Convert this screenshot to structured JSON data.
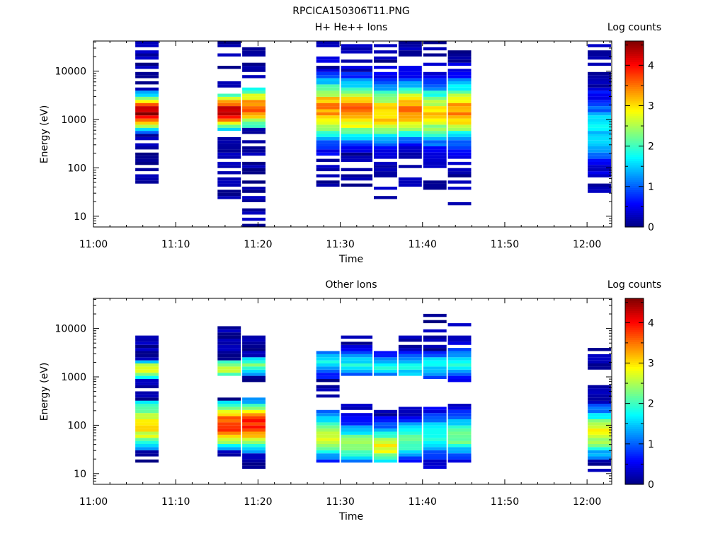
{
  "page_title": "RPCICA150306T11.PNG",
  "chart_data": [
    {
      "type": "heatmap",
      "title": "H+ He++ Ions",
      "xlabel": "Time",
      "ylabel": "Energy (eV)",
      "x_tick_labels": [
        "11:00",
        "11:10",
        "11:20",
        "11:30",
        "11:40",
        "11:50",
        "12:00"
      ],
      "x_range_minutes": [
        0,
        63
      ],
      "y_scale": "log",
      "y_tick_labels": [
        "10",
        "100",
        "1000",
        "10000"
      ],
      "y_range": [
        6,
        42000
      ],
      "colorbar": {
        "label": "Log counts",
        "range": [
          0,
          4.6
        ],
        "tick_labels": [
          "0",
          "1",
          "2",
          "3",
          "4"
        ]
      },
      "sweeps": [
        {
          "t_start": "11:05",
          "t_end": "11:08",
          "emin": 46,
          "emax": 40000,
          "peak_energy": 1400,
          "peak_value": 4.5,
          "width": 0.25,
          "low_level": 1.0,
          "fill": 0.65
        },
        {
          "t_start": "11:15",
          "t_end": "11:18",
          "emin": 22,
          "emax": 40000,
          "peak_energy": 1500,
          "peak_value": 4.2,
          "width": 0.27,
          "low_level": 1.4,
          "fill": 0.6
        },
        {
          "t_start": "11:18",
          "t_end": "11:21",
          "emin": 6,
          "emax": 40000,
          "peak_energy": 1700,
          "peak_value": 3.6,
          "width": 0.32,
          "low_level": 1.6,
          "fill": 0.55
        },
        {
          "t_start": "11:27",
          "t_end": "11:30",
          "emin": 38,
          "emax": 40000,
          "peak_energy": 1600,
          "peak_value": 3.4,
          "width": 0.45,
          "low_level": 0.4,
          "fill": 0.5
        },
        {
          "t_start": "11:30",
          "t_end": "11:34",
          "emin": 33,
          "emax": 38000,
          "peak_energy": 1500,
          "peak_value": 3.5,
          "width": 0.42,
          "low_level": 0.4,
          "fill": 0.45
        },
        {
          "t_start": "11:34",
          "t_end": "11:37",
          "emin": 17,
          "emax": 40000,
          "peak_energy": 1300,
          "peak_value": 3.2,
          "width": 0.42,
          "low_level": 0.3,
          "fill": 0.45
        },
        {
          "t_start": "11:37",
          "t_end": "11:40",
          "emin": 40,
          "emax": 40000,
          "peak_energy": 1500,
          "peak_value": 3.5,
          "width": 0.4,
          "low_level": 0.3,
          "fill": 0.5
        },
        {
          "t_start": "11:40",
          "t_end": "11:43",
          "emin": 33,
          "emax": 40000,
          "peak_energy": 1300,
          "peak_value": 3.0,
          "width": 0.42,
          "low_level": 0.3,
          "fill": 0.45
        },
        {
          "t_start": "11:43",
          "t_end": "11:46",
          "emin": 17,
          "emax": 40000,
          "peak_energy": 1500,
          "peak_value": 3.4,
          "width": 0.42,
          "low_level": 0.3,
          "fill": 0.45
        },
        {
          "t_start": "12:00",
          "t_end": "12:03",
          "emin": 31,
          "emax": 38000,
          "peak_energy": 600,
          "peak_value": 1.6,
          "width": 0.5,
          "low_level": 0.2,
          "fill": 0.55
        }
      ]
    },
    {
      "type": "heatmap",
      "title": "Other Ions",
      "xlabel": "Time",
      "ylabel": "Energy (eV)",
      "x_tick_labels": [
        "11:00",
        "11:10",
        "11:20",
        "11:30",
        "11:40",
        "11:50",
        "12:00"
      ],
      "x_range_minutes": [
        0,
        63
      ],
      "y_scale": "log",
      "y_tick_labels": [
        "10",
        "100",
        "1000",
        "10000"
      ],
      "y_range": [
        6,
        42000
      ],
      "colorbar": {
        "label": "Log counts",
        "range": [
          0,
          4.6
        ],
        "tick_labels": [
          "0",
          "1",
          "2",
          "3",
          "4"
        ]
      },
      "sweeps": [
        {
          "t_start": "11:05",
          "t_end": "11:08",
          "emin": 16,
          "emax": 7500,
          "peak_energy": 100,
          "peak_value": 3.0,
          "width": 0.4,
          "peak2_energy": 1400,
          "peak2_value": 3.0,
          "width2": 0.15,
          "low_level": 1.2,
          "fill": 0.9
        },
        {
          "t_start": "11:15",
          "t_end": "11:18",
          "emin": 22,
          "emax": 11000,
          "peak_energy": 100,
          "peak_value": 3.8,
          "width": 0.35,
          "peak2_energy": 1500,
          "peak2_value": 2.6,
          "width2": 0.15,
          "low_level": 1.2,
          "gap": [
            400,
            1000
          ],
          "fill": 0.85
        },
        {
          "t_start": "11:18",
          "t_end": "11:21",
          "emin": 11,
          "emax": 7500,
          "peak_energy": 100,
          "peak_value": 3.9,
          "width": 0.35,
          "peak2_energy": 1700,
          "peak2_value": 2.2,
          "width2": 0.15,
          "low_level": 1.2,
          "gap": [
            450,
            800
          ],
          "fill": 0.85
        },
        {
          "t_start": "11:27",
          "t_end": "11:30",
          "emin": 16,
          "emax": 3500,
          "peak_energy": 60,
          "peak_value": 2.6,
          "width": 0.35,
          "peak2_energy": 2000,
          "peak2_value": 1.8,
          "width2": 0.2,
          "low_level": 0.4,
          "gap": [
            220,
            400
          ],
          "fill": 0.7
        },
        {
          "t_start": "11:30",
          "t_end": "11:34",
          "emin": 16,
          "emax": 8000,
          "peak_energy": 40,
          "peak_value": 2.4,
          "width": 0.3,
          "peak2_energy": 1800,
          "peak2_value": 1.8,
          "width2": 0.2,
          "low_level": 0.4,
          "gap": [
            280,
            1000
          ],
          "fill": 0.7
        },
        {
          "t_start": "11:34",
          "t_end": "11:37",
          "emin": 16,
          "emax": 3500,
          "peak_energy": 35,
          "peak_value": 2.8,
          "width": 0.3,
          "peak2_energy": 1600,
          "peak2_value": 1.7,
          "width2": 0.2,
          "low_level": 0.4,
          "gap": [
            200,
            1000
          ],
          "fill": 0.6
        },
        {
          "t_start": "11:37",
          "t_end": "11:40",
          "emin": 16,
          "emax": 7000,
          "peak_energy": 50,
          "peak_value": 2.2,
          "width": 0.3,
          "peak2_energy": 1600,
          "peak2_value": 1.8,
          "width2": 0.2,
          "low_level": 0.4,
          "gap": [
            250,
            1000
          ],
          "fill": 0.7
        },
        {
          "t_start": "11:40",
          "t_end": "11:43",
          "emin": 11,
          "emax": 24000,
          "peak_energy": 60,
          "peak_value": 2.0,
          "width": 0.3,
          "peak2_energy": 1800,
          "peak2_value": 1.7,
          "width2": 0.2,
          "low_level": 0.4,
          "gap": [
            240,
            900
          ],
          "fill": 0.6
        },
        {
          "t_start": "11:43",
          "t_end": "11:46",
          "emin": 16,
          "emax": 12000,
          "peak_energy": 60,
          "peak_value": 2.3,
          "width": 0.3,
          "peak2_energy": 2000,
          "peak2_value": 1.8,
          "width2": 0.2,
          "low_level": 0.4,
          "gap": [
            260,
            800
          ],
          "fill": 0.7
        },
        {
          "t_start": "12:00",
          "t_end": "12:03",
          "emin": 11,
          "emax": 4500,
          "peak_energy": 70,
          "peak_value": 2.8,
          "width": 0.35,
          "low_level": 0.8,
          "gap": [
            700,
            1500
          ],
          "fill": 0.8
        }
      ]
    }
  ]
}
